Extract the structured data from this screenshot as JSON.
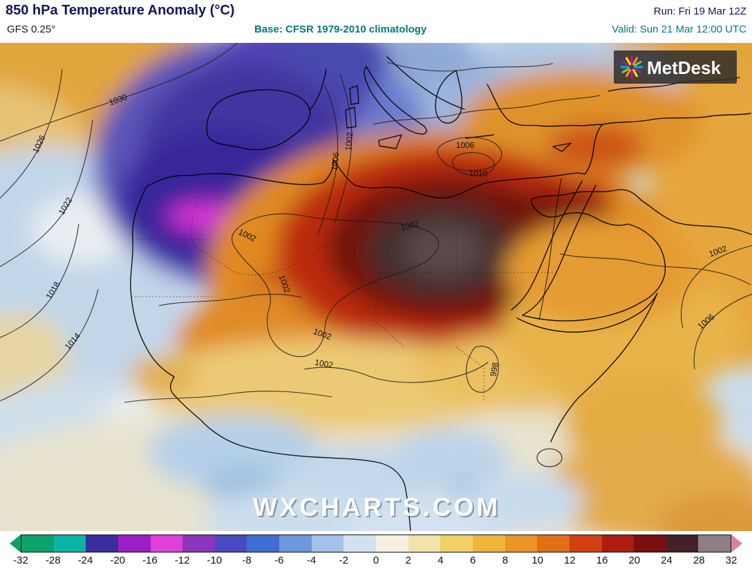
{
  "header": {
    "title": "850 hPa Temperature Anomaly (°C)",
    "model": "GFS 0.25°",
    "base": "Base: CFSR 1979-2010 climatology",
    "run": "Run: Fri 19 Mar 12Z",
    "valid": "Valid: Sun 21 Mar 12:00 UTC"
  },
  "map": {
    "watermark": "WXCHARTS.COM",
    "logo": {
      "text": "MetDesk",
      "colors": [
        "#e6007e",
        "#f7941d",
        "#8dc63f",
        "#00aeef",
        "#92278f",
        "#ffe600"
      ]
    },
    "contour_labels": [
      "1030",
      "1026",
      "1022",
      "1018",
      "1014",
      "1006",
      "1002",
      "1002",
      "1002",
      "1002",
      "1002",
      "1006",
      "1010",
      "1002",
      "998",
      "1002",
      "1006"
    ]
  },
  "chart_data": {
    "type": "heatmap",
    "title": "850 hPa Temperature Anomaly (°C)",
    "units": "°C",
    "model": "GFS 0.25°",
    "climatology_base": "CFSR 1979-2010",
    "run": "Fri 19 Mar 12Z",
    "valid": "Sun 21 Mar 12:00 UTC",
    "region": "North Africa / southern Europe / Middle East",
    "colorbar": {
      "ticks": [
        "-32",
        "-28",
        "-24",
        "-20",
        "-16",
        "-12",
        "-10",
        "-8",
        "-6",
        "-4",
        "-2",
        "0",
        "2",
        "4",
        "6",
        "8",
        "10",
        "12",
        "16",
        "20",
        "24",
        "28",
        "32"
      ],
      "segment_colors": [
        "#0ca36a",
        "#0bb4a6",
        "#3a2d9e",
        "#9b1fc8",
        "#e03fd8",
        "#8a35bb",
        "#4a49c4",
        "#3e6ed2",
        "#6f97de",
        "#a3c1ea",
        "#d2e1f2",
        "#f6f1e1",
        "#f2e2ab",
        "#f1d066",
        "#efb63a",
        "#ea9426",
        "#e26f15",
        "#d2410e",
        "#ad1b11",
        "#7a110d",
        "#432227",
        "#8e7f86"
      ],
      "left_cap": "#0ca36a",
      "right_cap": "#db7fa6"
    },
    "contour_values_visible": [
      998,
      1002,
      1006,
      1010,
      1014,
      1018,
      1022,
      1026,
      1030
    ],
    "anomaly_centers": [
      {
        "type": "warm",
        "location": "Libya / Egypt (eastern Sahara)",
        "approx_value_c": "+24 to +28"
      },
      {
        "type": "cold",
        "location": "Iberia / northwest Africa",
        "approx_value_c": "-14 to -18"
      },
      {
        "type": "warm",
        "location": "Levant / Anatolia / Arabia",
        "approx_value_c": "+6 to +14"
      },
      {
        "type": "near-normal",
        "location": "equatorial Africa",
        "approx_value_c": "-2 to +2"
      },
      {
        "type": "warm",
        "location": "subtropical Atlantic (northwest corner)",
        "approx_value_c": "+4 to +8"
      }
    ]
  }
}
